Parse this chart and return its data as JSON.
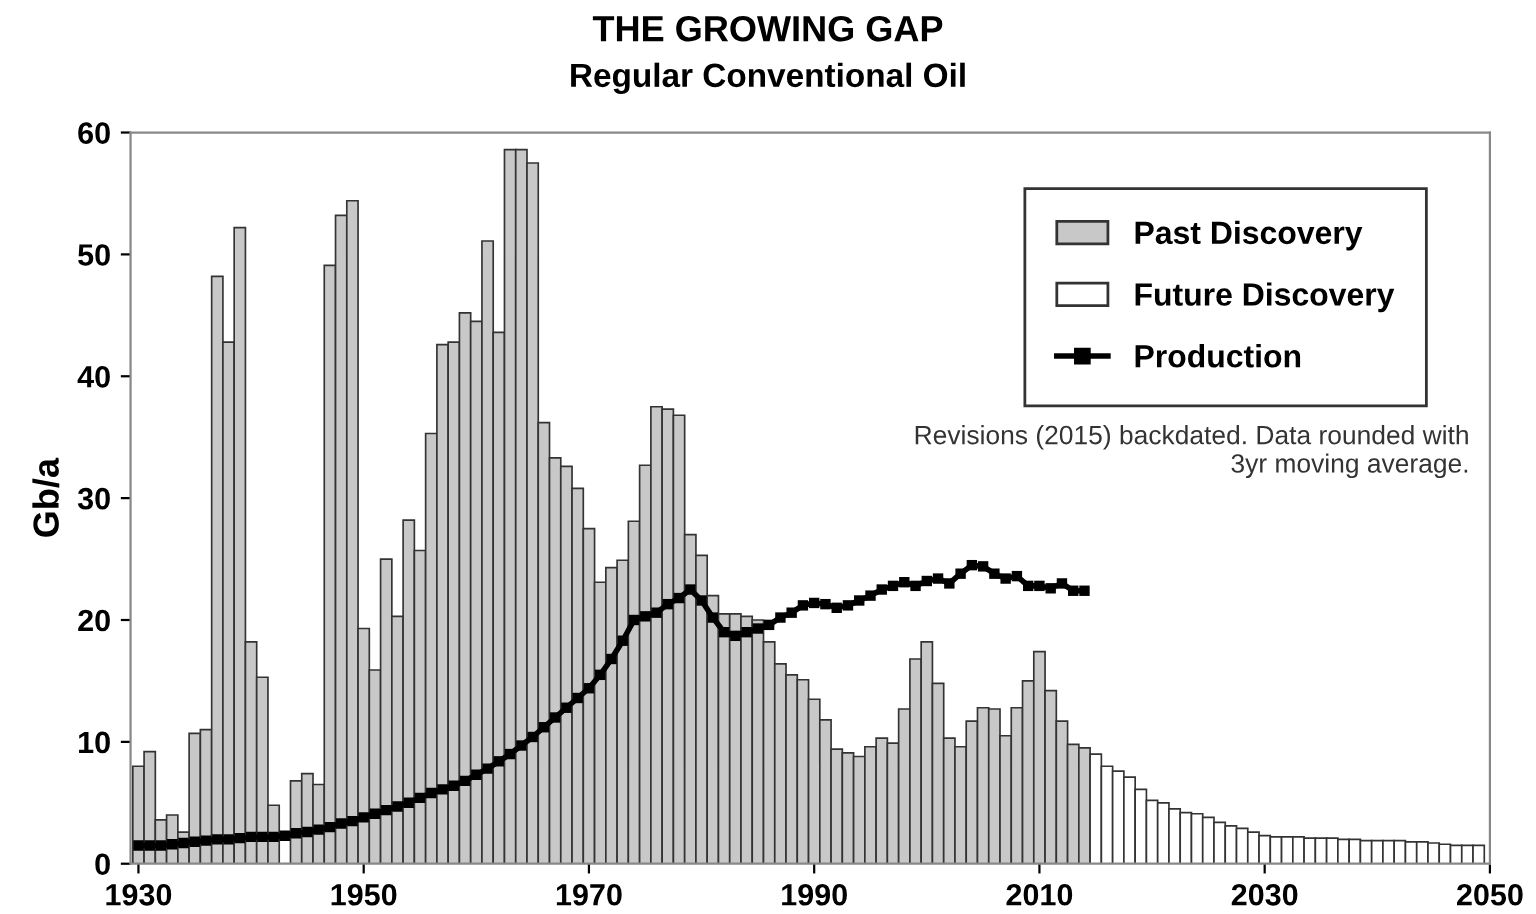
{
  "chart_data": {
    "type": "bar",
    "title": "THE GROWING GAP",
    "subtitle": "Regular Conventional Oil",
    "ylabel": "Gb/a",
    "xlim": [
      1929.3,
      2050
    ],
    "xticks": [
      1930,
      1950,
      1970,
      1990,
      2010,
      2030,
      2050
    ],
    "ylim": [
      0,
      60
    ],
    "yticks": [
      0,
      10,
      20,
      30,
      40,
      50,
      60
    ],
    "grid": false,
    "legend": "top right",
    "series": [
      {
        "name": "Past Discovery",
        "color": "#c8c8c8",
        "x": [
          1930,
          1931,
          1932,
          1933,
          1934,
          1935,
          1936,
          1937,
          1938,
          1939,
          1940,
          1941,
          1942,
          1943,
          1944,
          1945,
          1946,
          1947,
          1948,
          1949,
          1950,
          1951,
          1952,
          1953,
          1954,
          1955,
          1956,
          1957,
          1958,
          1959,
          1960,
          1961,
          1962,
          1963,
          1964,
          1965,
          1966,
          1967,
          1968,
          1969,
          1970,
          1971,
          1972,
          1973,
          1974,
          1975,
          1976,
          1977,
          1978,
          1979,
          1980,
          1981,
          1982,
          1983,
          1984,
          1985,
          1986,
          1987,
          1988,
          1989,
          1990,
          1991,
          1992,
          1993,
          1994,
          1995,
          1996,
          1997,
          1998,
          1999,
          2000,
          2001,
          2002,
          2003,
          2004,
          2005,
          2006,
          2007,
          2008,
          2009,
          2010,
          2011,
          2012,
          2013,
          2014
        ],
        "values": [
          8.0,
          9.2,
          3.6,
          4.0,
          2.6,
          10.7,
          11.0,
          48.2,
          42.8,
          52.2,
          18.2,
          15.3,
          4.8,
          null,
          6.8,
          7.4,
          6.5,
          49.1,
          53.2,
          54.4,
          19.3,
          15.9,
          25.0,
          20.3,
          28.2,
          25.7,
          35.3,
          42.6,
          42.8,
          45.2,
          44.5,
          51.1,
          43.6,
          58.6,
          58.6,
          57.5,
          36.2,
          33.3,
          32.6,
          30.8,
          27.5,
          23.1,
          24.3,
          24.9,
          28.1,
          32.7,
          37.5,
          37.3,
          36.8,
          27.0,
          25.3,
          22.0,
          20.5,
          20.5,
          20.3,
          20.0,
          18.2,
          16.4,
          15.5,
          15.1,
          13.5,
          11.8,
          9.4,
          9.1,
          8.8,
          9.6,
          10.3,
          9.9,
          12.7,
          16.8,
          18.2,
          14.8,
          10.3,
          9.6,
          11.7,
          12.8,
          12.7,
          10.5,
          12.8,
          15.0,
          17.4,
          14.2,
          11.7,
          9.8,
          9.5
        ]
      },
      {
        "name": "Future Discovery",
        "color": "#ffffff",
        "x": [
          2015,
          2016,
          2017,
          2018,
          2019,
          2020,
          2021,
          2022,
          2023,
          2024,
          2025,
          2026,
          2027,
          2028,
          2029,
          2030,
          2031,
          2032,
          2033,
          2034,
          2035,
          2036,
          2037,
          2038,
          2039,
          2040,
          2041,
          2042,
          2043,
          2044,
          2045,
          2046,
          2047,
          2048,
          2049
        ],
        "values": [
          9.0,
          8.0,
          7.6,
          7.1,
          6.1,
          5.2,
          5.0,
          4.5,
          4.2,
          4.1,
          3.8,
          3.4,
          3.1,
          2.9,
          2.6,
          2.3,
          2.2,
          2.2,
          2.2,
          2.1,
          2.1,
          2.1,
          2.0,
          2.0,
          1.9,
          1.9,
          1.9,
          1.9,
          1.8,
          1.8,
          1.7,
          1.6,
          1.5,
          1.5,
          1.5
        ]
      },
      {
        "name": "Production",
        "type": "line",
        "color": "#000000",
        "marker": "square",
        "line_style": "solid",
        "x": [
          1930,
          1931,
          1932,
          1933,
          1934,
          1935,
          1936,
          1937,
          1938,
          1939,
          1940,
          1941,
          1942,
          1943,
          1944,
          1945,
          1946,
          1947,
          1948,
          1949,
          1950,
          1951,
          1952,
          1953,
          1954,
          1955,
          1956,
          1957,
          1958,
          1959,
          1960,
          1961,
          1962,
          1963,
          1964,
          1965,
          1966,
          1967,
          1968,
          1969,
          1970,
          1971,
          1972,
          1973,
          1974,
          1975,
          1976,
          1977,
          1978,
          1979,
          1980,
          1981,
          1982,
          1983,
          1984,
          1985,
          1986,
          1987,
          1988,
          1989,
          1990,
          1991,
          1992,
          1993,
          1994,
          1995,
          1996,
          1997,
          1998,
          1999,
          2000,
          2001,
          2002,
          2003,
          2004,
          2005,
          2006,
          2007,
          2008,
          2009,
          2010,
          2011,
          2012,
          2013,
          2014
        ],
        "values": [
          1.5,
          1.5,
          1.5,
          1.6,
          1.7,
          1.8,
          1.9,
          2.0,
          2.0,
          2.1,
          2.2,
          2.2,
          2.2,
          2.3,
          2.5,
          2.6,
          2.8,
          3.0,
          3.3,
          3.5,
          3.8,
          4.1,
          4.4,
          4.7,
          5.0,
          5.4,
          5.8,
          6.1,
          6.4,
          6.8,
          7.3,
          7.8,
          8.4,
          9.0,
          9.7,
          10.4,
          11.2,
          12.0,
          12.8,
          13.6,
          14.4,
          15.5,
          16.8,
          18.3,
          20.0,
          20.3,
          20.6,
          21.3,
          21.8,
          22.5,
          21.6,
          20.2,
          19.0,
          18.7,
          19.0,
          19.3,
          19.6,
          20.2,
          20.6,
          21.2,
          21.4,
          21.3,
          21.0,
          21.2,
          21.6,
          22.0,
          22.5,
          22.8,
          23.1,
          22.8,
          23.2,
          23.4,
          23.0,
          23.8,
          24.5,
          24.4,
          23.8,
          23.4,
          23.6,
          22.8,
          22.8,
          22.6,
          23.0,
          22.4,
          22.4
        ]
      }
    ],
    "annotations": [
      "Revisions (2015) backdated. Data rounded with 3yr moving average."
    ]
  }
}
